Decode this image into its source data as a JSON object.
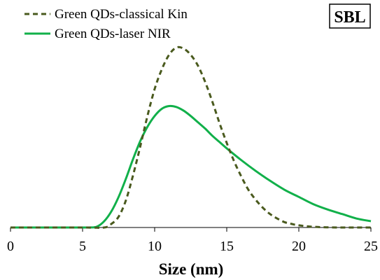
{
  "chart_data": {
    "type": "line",
    "panel_label": "SBL",
    "xlabel": "Size (nm)",
    "ylabel": "",
    "xlim": [
      0,
      25
    ],
    "ylim": [
      0,
      1.0
    ],
    "x_ticks": [
      "0",
      "5",
      "10",
      "15",
      "20",
      "25"
    ],
    "y_ticks_shown": false,
    "grid": false,
    "legend_position": "top-left",
    "series": [
      {
        "name": "Green QDs-classical Kin",
        "color": "#4a5a1e",
        "line_style": "dashed",
        "x": [
          0,
          5,
          6.5,
          7,
          7.5,
          8,
          8.5,
          9,
          9.5,
          10,
          10.5,
          11,
          11.5,
          12,
          12.5,
          13,
          13.5,
          14,
          14.5,
          15,
          15.5,
          16,
          16.5,
          17,
          17.5,
          18,
          18.5,
          19,
          19.5,
          20,
          21,
          22,
          23,
          24,
          25
        ],
        "values": [
          0,
          0,
          0,
          0.02,
          0.06,
          0.15,
          0.29,
          0.45,
          0.62,
          0.77,
          0.88,
          0.96,
          1.0,
          0.995,
          0.96,
          0.9,
          0.81,
          0.7,
          0.58,
          0.47,
          0.37,
          0.285,
          0.21,
          0.155,
          0.11,
          0.075,
          0.05,
          0.03,
          0.02,
          0.012,
          0.004,
          0.001,
          0,
          0,
          0
        ]
      },
      {
        "name": "Green QDs-laser NIR",
        "color": "#11b04a",
        "line_style": "solid",
        "x": [
          0,
          5,
          5.5,
          6,
          6.5,
          7,
          7.5,
          8,
          8.5,
          9,
          9.5,
          10,
          10.5,
          11,
          11.5,
          12,
          12.5,
          13,
          13.5,
          14,
          14.5,
          15,
          16,
          17,
          18,
          19,
          20,
          21,
          22,
          23,
          24,
          25
        ],
        "values": [
          0,
          0,
          0,
          0.005,
          0.035,
          0.09,
          0.17,
          0.27,
          0.38,
          0.48,
          0.56,
          0.62,
          0.66,
          0.675,
          0.67,
          0.65,
          0.62,
          0.585,
          0.55,
          0.51,
          0.475,
          0.44,
          0.375,
          0.315,
          0.26,
          0.21,
          0.17,
          0.13,
          0.1,
          0.075,
          0.05,
          0.035
        ]
      }
    ]
  }
}
